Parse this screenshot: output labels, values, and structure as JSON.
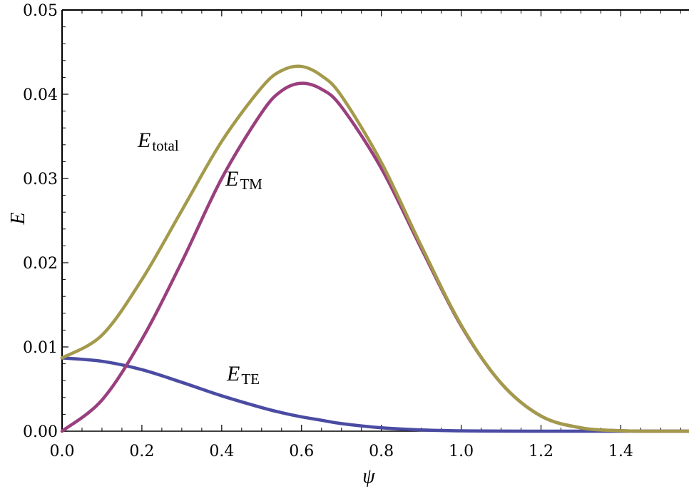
{
  "chart_data": {
    "type": "line",
    "xlabel": "ψ",
    "ylabel": "E",
    "xlim": [
      0,
      1.5708
    ],
    "ylim": [
      0,
      0.05
    ],
    "grid": false,
    "x_ticks": [
      "0.0",
      "0.2",
      "0.4",
      "0.6",
      "0.8",
      "1.0",
      "1.2",
      "1.4"
    ],
    "y_ticks": [
      "0.00",
      "0.01",
      "0.02",
      "0.03",
      "0.04",
      "0.05"
    ],
    "x": [
      0.0,
      0.1,
      0.2,
      0.3,
      0.4,
      0.5,
      0.55,
      0.6,
      0.65,
      0.7,
      0.8,
      0.9,
      1.0,
      1.1,
      1.2,
      1.3,
      1.4,
      1.5,
      1.5708
    ],
    "series": [
      {
        "name": "total",
        "label_symbol": "E",
        "label_sub": "total",
        "color": "#A39A4B",
        "values": [
          0.0087,
          0.0114,
          0.018,
          0.0262,
          0.0344,
          0.0408,
          0.0428,
          0.0433,
          0.0422,
          0.0398,
          0.0319,
          0.022,
          0.0126,
          0.0057,
          0.0018,
          0.0004,
          5e-05,
          0.0,
          0.0
        ]
      },
      {
        "name": "TM",
        "label_symbol": "E",
        "label_sub": "TM",
        "color": "#9A3F7E",
        "values": [
          0.0,
          0.0037,
          0.0109,
          0.0201,
          0.03,
          0.0378,
          0.0404,
          0.0413,
          0.0406,
          0.0385,
          0.0312,
          0.0217,
          0.0125,
          0.0057,
          0.0018,
          0.0004,
          5e-05,
          0.0,
          0.0
        ]
      },
      {
        "name": "TE",
        "label_symbol": "E",
        "label_sub": "TE",
        "color": "#4A4BA2",
        "values": [
          0.0087,
          0.0083,
          0.0073,
          0.0058,
          0.0042,
          0.0028,
          0.0022,
          0.0017,
          0.0013,
          0.0009,
          0.0004,
          0.00015,
          4e-05,
          1e-05,
          0.0,
          0.0,
          0.0,
          0.0,
          0.0
        ]
      }
    ]
  }
}
